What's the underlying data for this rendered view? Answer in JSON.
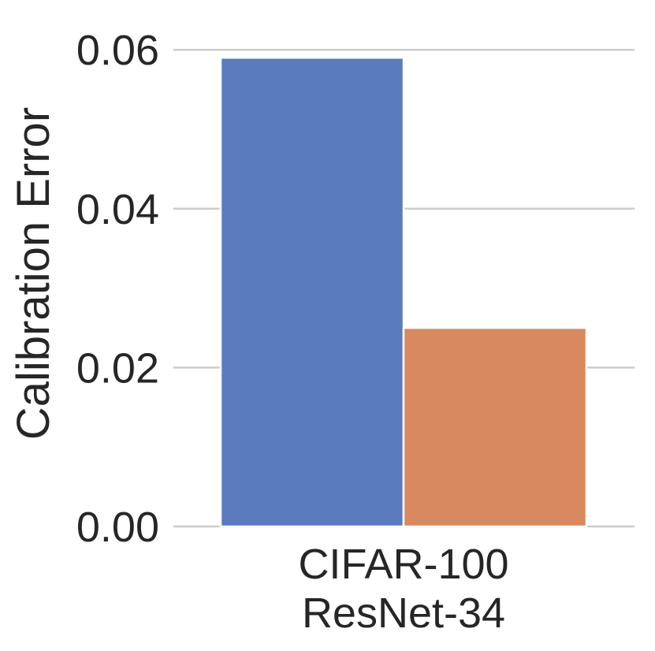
{
  "chart_data": {
    "type": "bar",
    "title": "",
    "xlabel": "",
    "ylabel": "Calibration Error",
    "categories": [
      "CIFAR-100\nResNet-34"
    ],
    "category_lines": [
      [
        "CIFAR-100",
        "ResNet-34"
      ]
    ],
    "series": [
      {
        "values": [
          0.059
        ],
        "color": "#5b7bbf"
      },
      {
        "values": [
          0.025
        ],
        "color": "#d8895f"
      }
    ],
    "ylim": [
      0,
      0.0625
    ],
    "yticks": [
      0.0,
      0.02,
      0.04,
      0.06
    ],
    "ytick_labels": [
      "0.00",
      "0.02",
      "0.04",
      "0.06"
    ],
    "grid": true,
    "grid_axis": "y",
    "legend": null
  }
}
